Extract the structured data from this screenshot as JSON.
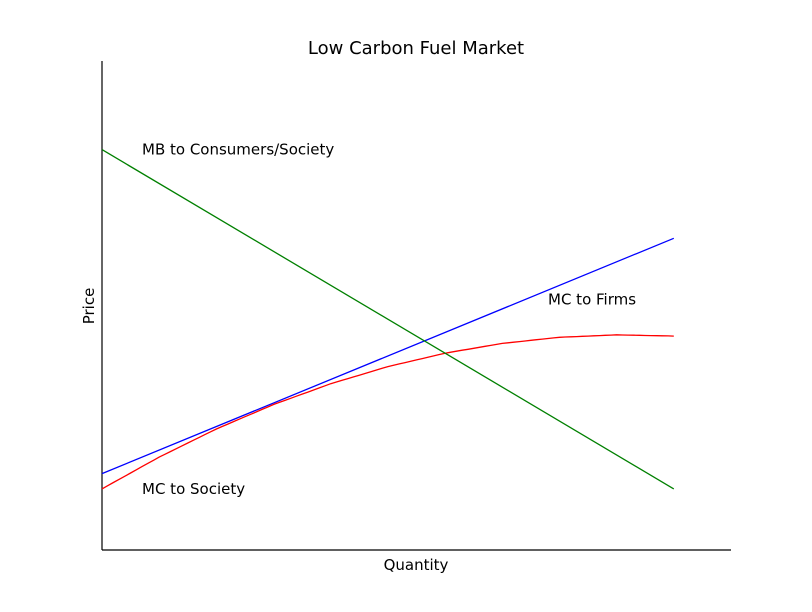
{
  "chart_data": {
    "type": "line",
    "title": "Low Carbon Fuel Market",
    "xlabel": "Quantity",
    "ylabel": "Price",
    "ticks": "none",
    "xlim": [
      0,
      11
    ],
    "ylim": [
      -1,
      15
    ],
    "series": [
      {
        "name": "MC to Firms",
        "color": "#0000ff",
        "x": [
          0,
          10
        ],
        "y": [
          1.5,
          9.2
        ]
      },
      {
        "name": "MC to Society",
        "color": "#ff0000",
        "x": [
          0,
          1,
          2,
          3,
          4,
          5,
          6,
          7,
          8,
          9,
          10
        ],
        "y": [
          1.0,
          2.04,
          2.96,
          3.76,
          4.44,
          5.0,
          5.44,
          5.76,
          5.96,
          6.04,
          6.0
        ]
      },
      {
        "name": "MB to Consumers/Society",
        "color": "#008000",
        "x": [
          0,
          10
        ],
        "y": [
          12.1,
          1.0
        ]
      }
    ],
    "annotations": [
      {
        "text": "MB to Consumers/Society",
        "x": 0.7,
        "y": 12.1
      },
      {
        "text": "MC to Firms",
        "x": 7.8,
        "y": 7.2
      },
      {
        "text": "MC to Society",
        "x": 0.7,
        "y": 1.0
      }
    ]
  }
}
